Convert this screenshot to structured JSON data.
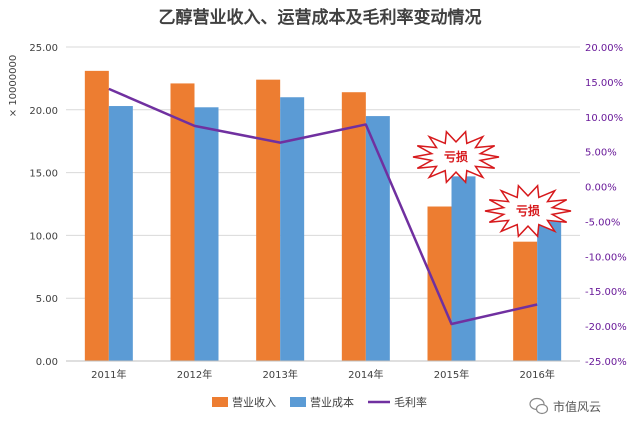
{
  "chart_data": {
    "type": "bar",
    "title": "乙醇营业收入、运营成本及毛利率变动情况",
    "ylabel_left": "× 10000000",
    "categories": [
      "2011年",
      "2012年",
      "2013年",
      "2014年",
      "2015年",
      "2016年"
    ],
    "series": [
      {
        "name": "营业收入",
        "kind": "bar",
        "axis": "left",
        "color": "#ed7d31",
        "values": [
          23.1,
          22.1,
          22.4,
          21.4,
          12.3,
          9.5
        ]
      },
      {
        "name": "营业成本",
        "kind": "bar",
        "axis": "left",
        "color": "#5b9bd5",
        "values": [
          20.3,
          20.2,
          21.0,
          19.5,
          14.7,
          11.1
        ]
      },
      {
        "name": "毛利率",
        "kind": "line",
        "axis": "right",
        "color": "#7030a0",
        "values": [
          14.0,
          8.7,
          6.3,
          8.9,
          -19.7,
          -16.9
        ]
      }
    ],
    "ylim_left": [
      0,
      25
    ],
    "yticks_left": [
      "0.00",
      "5.00",
      "10.00",
      "15.00",
      "20.00",
      "25.00"
    ],
    "ylim_right": [
      -25,
      20
    ],
    "yticks_right": [
      "-25.00%",
      "-20.00%",
      "-15.00%",
      "-10.00%",
      "-5.00%",
      "0.00%",
      "5.00%",
      "10.00%",
      "15.00%",
      "20.00%"
    ],
    "grid": true,
    "legend_position": "bottom",
    "annotations": [
      {
        "text": "亏损",
        "category": "2015年"
      },
      {
        "text": "亏损",
        "category": "2016年"
      }
    ]
  },
  "watermark": {
    "text": "市值风云"
  }
}
